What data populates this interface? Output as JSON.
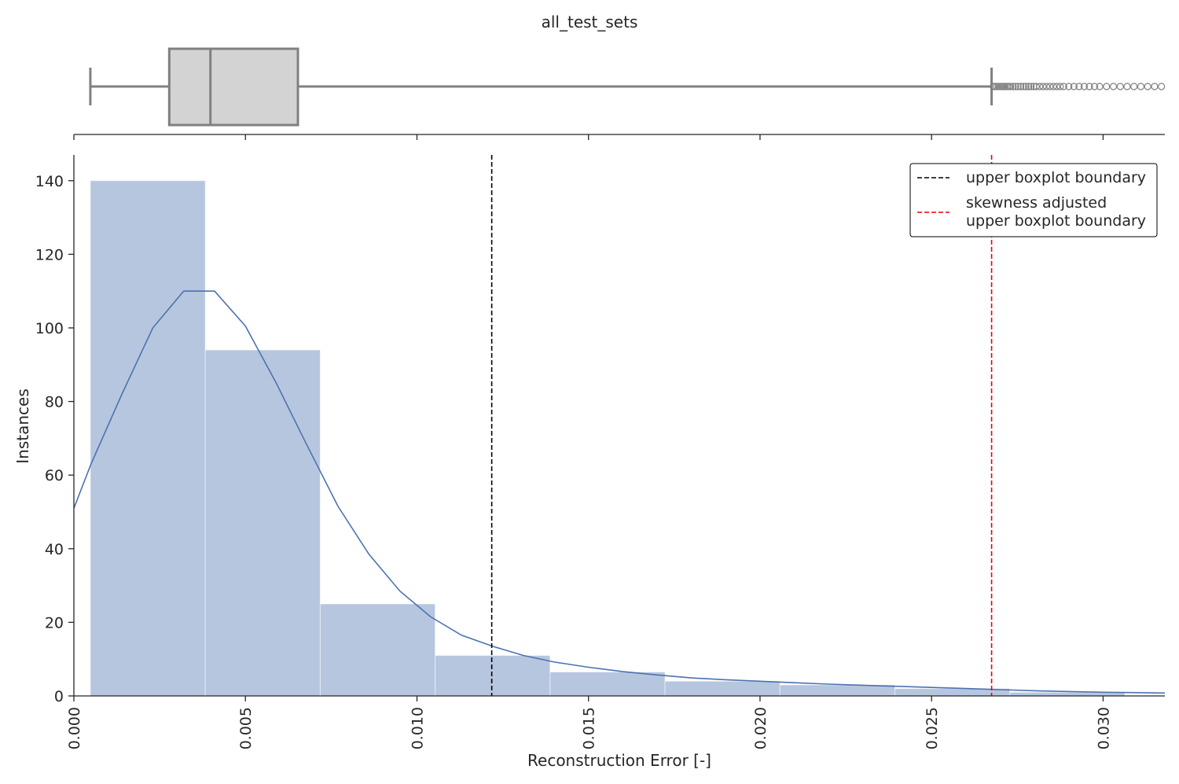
{
  "chart_data": {
    "type": "histogram",
    "title": "all_test_sets",
    "xlabel": "Reconstruction Error [-]",
    "ylabel": "Instances",
    "xlim": [
      0.0,
      0.0318
    ],
    "ylim": [
      0,
      147
    ],
    "x_ticks": [
      "0.000",
      "0.005",
      "0.010",
      "0.015",
      "0.020",
      "0.025",
      "0.030"
    ],
    "y_ticks": [
      "0",
      "20",
      "40",
      "60",
      "80",
      "100",
      "120",
      "140"
    ],
    "histogram": {
      "bin_edges": [
        0.00048,
        0.00383,
        0.00718,
        0.01053,
        0.01388,
        0.01723,
        0.02058,
        0.02393,
        0.02728,
        0.03063
      ],
      "counts": [
        140,
        94,
        25,
        11,
        6.5,
        4,
        3,
        2,
        1
      ],
      "color": "#b7c6df"
    },
    "kde": {
      "color": "#4c72b0",
      "x": [
        0.0,
        0.0005,
        0.0014,
        0.0023,
        0.0032,
        0.0041,
        0.005,
        0.0059,
        0.0068,
        0.0077,
        0.0086,
        0.0095,
        0.0104,
        0.0113,
        0.0122,
        0.0131,
        0.014,
        0.015,
        0.016,
        0.017,
        0.018,
        0.019,
        0.02,
        0.021,
        0.022,
        0.023,
        0.024,
        0.025,
        0.026,
        0.027,
        0.028,
        0.029,
        0.03,
        0.031,
        0.0318
      ],
      "y": [
        51,
        63,
        82,
        100,
        110,
        110,
        100.5,
        85,
        68,
        51.5,
        38.5,
        28.5,
        21.5,
        16.5,
        13.5,
        11,
        9.2,
        7.8,
        6.6,
        5.7,
        4.9,
        4.4,
        4.0,
        3.6,
        3.2,
        2.9,
        2.6,
        2.3,
        2.0,
        1.7,
        1.4,
        1.2,
        1.0,
        0.9,
        0.8
      ]
    },
    "reference_lines": [
      {
        "name": "upper boxplot boundary",
        "x": 0.01218,
        "color": "#000000",
        "style": "dashed"
      },
      {
        "name": "skewness adjusted\nupper boxplot boundary",
        "x": 0.02675,
        "color": "#e8000b",
        "style": "dashed"
      }
    ],
    "legend": {
      "position": "top-right",
      "entries": [
        {
          "label_lines": [
            "upper boxplot boundary"
          ],
          "color": "#000000"
        },
        {
          "label_lines": [
            "skewness adjusted",
            "upper boxplot boundary"
          ],
          "color": "#e8000b"
        }
      ]
    },
    "boxplot": {
      "whisker_low": 0.00048,
      "q1": 0.00278,
      "median": 0.00398,
      "q3": 0.00653,
      "whisker_high": 0.02675,
      "box_color": "#d3d3d3",
      "line_color": "#808080",
      "outliers": [
        0.0268,
        0.02685,
        0.0269,
        0.02695,
        0.027,
        0.02705,
        0.0271,
        0.02715,
        0.0272,
        0.02725,
        0.0273,
        0.02738,
        0.02745,
        0.02752,
        0.0276,
        0.02768,
        0.02775,
        0.02783,
        0.0279,
        0.02798,
        0.02805,
        0.02815,
        0.02825,
        0.02835,
        0.02845,
        0.02855,
        0.02865,
        0.02875,
        0.02885,
        0.029,
        0.02915,
        0.0293,
        0.02945,
        0.0296,
        0.02975,
        0.0299,
        0.0301,
        0.0303,
        0.0305,
        0.0307,
        0.0309,
        0.0311,
        0.0313,
        0.0315,
        0.0317
      ]
    }
  }
}
